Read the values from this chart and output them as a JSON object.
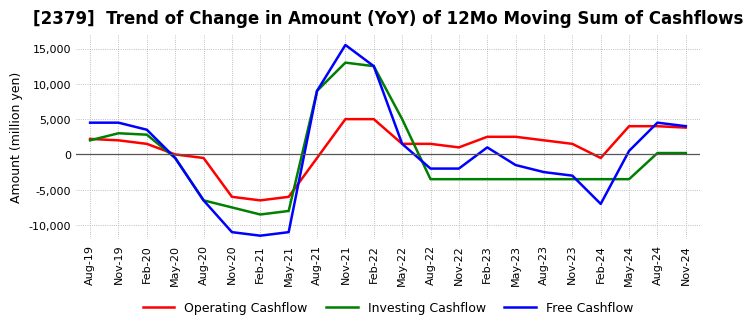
{
  "title": "[2379]  Trend of Change in Amount (YoY) of 12Mo Moving Sum of Cashflows",
  "ylabel": "Amount (million yen)",
  "ylim": [
    -12000,
    17000
  ],
  "yticks": [
    -10000,
    -5000,
    0,
    5000,
    10000,
    15000
  ],
  "x_labels": [
    "Aug-19",
    "Nov-19",
    "Feb-20",
    "May-20",
    "Aug-20",
    "Nov-20",
    "Feb-21",
    "May-21",
    "Aug-21",
    "Nov-21",
    "Feb-22",
    "May-22",
    "Aug-22",
    "Nov-22",
    "Feb-23",
    "May-23",
    "Aug-23",
    "Nov-23",
    "Feb-24",
    "May-24",
    "Aug-24",
    "Nov-24"
  ],
  "operating": [
    2200,
    2000,
    1500,
    0,
    -500,
    -6000,
    -6500,
    -6000,
    -500,
    5000,
    5000,
    1500,
    1500,
    1000,
    2500,
    2500,
    2000,
    1500,
    -500,
    4000,
    4000,
    3800
  ],
  "investing": [
    2000,
    3000,
    2800,
    -500,
    -6500,
    -7500,
    -8500,
    -8000,
    9000,
    13000,
    12500,
    5000,
    -3500,
    -3500,
    -3500,
    -3500,
    -3500,
    -3500,
    -3500,
    -3500,
    200,
    200
  ],
  "free": [
    4500,
    4500,
    3500,
    -500,
    -6500,
    -11000,
    -11500,
    -11000,
    9000,
    15500,
    12500,
    1500,
    -2000,
    -2000,
    1000,
    -1500,
    -2500,
    -3000,
    -7000,
    500,
    4500,
    4000
  ],
  "op_color": "#ff0000",
  "inv_color": "#008000",
  "free_color": "#0000ff",
  "bg_color": "#ffffff",
  "grid_color": "#aaaaaa",
  "title_fontsize": 12,
  "label_fontsize": 9,
  "tick_fontsize": 8
}
